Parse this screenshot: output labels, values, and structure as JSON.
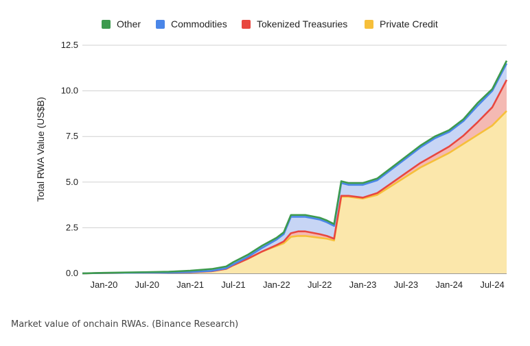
{
  "caption": "Market value of onchain RWAs. (Binance Research)",
  "chart_data": {
    "type": "area",
    "stacked": true,
    "title": "",
    "xlabel": "",
    "ylabel": "Total RWA Value (US$B)",
    "ylim": [
      0,
      12.5
    ],
    "yticks": [
      "0.0",
      "2.5",
      "5.0",
      "7.5",
      "10.0",
      "12.5"
    ],
    "xticks": [
      "Jan-20",
      "Jul-20",
      "Jan-21",
      "Jul-21",
      "Jan-22",
      "Jul-22",
      "Jan-23",
      "Jul-23",
      "Jan-24",
      "Jul-24"
    ],
    "x_range": [
      "2019-10",
      "2024-09"
    ],
    "legend_position": "top",
    "grid": true,
    "x": [
      "2019-10",
      "2020-01",
      "2020-04",
      "2020-07",
      "2020-10",
      "2021-01",
      "2021-04",
      "2021-06",
      "2021-07",
      "2021-09",
      "2021-11",
      "2022-01",
      "2022-02",
      "2022-03",
      "2022-04",
      "2022-05",
      "2022-07",
      "2022-08",
      "2022-09",
      "2022-10",
      "2022-11",
      "2023-01",
      "2023-03",
      "2023-05",
      "2023-07",
      "2023-09",
      "2023-11",
      "2024-01",
      "2024-03",
      "2024-05",
      "2024-07",
      "2024-09"
    ],
    "series": [
      {
        "name": "Private Credit",
        "color": "#f6bf3a",
        "values": [
          0.0,
          0.02,
          0.03,
          0.04,
          0.05,
          0.06,
          0.12,
          0.25,
          0.45,
          0.8,
          1.2,
          1.5,
          1.65,
          2.0,
          2.05,
          2.05,
          1.95,
          1.9,
          1.8,
          4.2,
          4.2,
          4.1,
          4.3,
          4.8,
          5.3,
          5.8,
          6.2,
          6.6,
          7.1,
          7.6,
          8.1,
          8.9
        ]
      },
      {
        "name": "Tokenized Treasuries",
        "color": "#e8473f",
        "values": [
          0.0,
          0.0,
          0.0,
          0.0,
          0.0,
          0.0,
          0.0,
          0.0,
          0.0,
          0.0,
          0.0,
          0.05,
          0.1,
          0.2,
          0.25,
          0.25,
          0.2,
          0.15,
          0.1,
          0.05,
          0.05,
          0.05,
          0.1,
          0.15,
          0.2,
          0.25,
          0.3,
          0.35,
          0.45,
          0.7,
          1.0,
          1.7
        ]
      },
      {
        "name": "Commodities",
        "color": "#4a86e8",
        "values": [
          0.0,
          0.0,
          0.0,
          0.0,
          0.0,
          0.01,
          0.02,
          0.03,
          0.05,
          0.1,
          0.2,
          0.3,
          0.4,
          0.9,
          0.8,
          0.8,
          0.8,
          0.75,
          0.7,
          0.7,
          0.6,
          0.7,
          0.7,
          0.75,
          0.8,
          0.85,
          0.9,
          0.8,
          0.8,
          0.9,
          0.9,
          0.9
        ]
      },
      {
        "name": "Other",
        "color": "#3d9a4e",
        "values": [
          0.0,
          0.01,
          0.02,
          0.03,
          0.04,
          0.08,
          0.1,
          0.1,
          0.12,
          0.12,
          0.12,
          0.1,
          0.1,
          0.1,
          0.1,
          0.1,
          0.1,
          0.1,
          0.1,
          0.1,
          0.1,
          0.1,
          0.1,
          0.1,
          0.1,
          0.1,
          0.1,
          0.1,
          0.1,
          0.15,
          0.1,
          0.15
        ]
      }
    ]
  }
}
